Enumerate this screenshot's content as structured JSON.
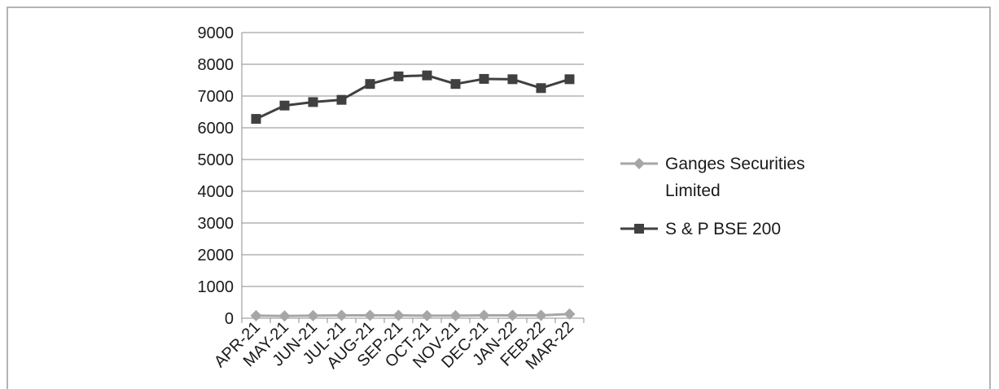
{
  "chart_data": {
    "type": "line",
    "categories": [
      "APR-21",
      "MAY-21",
      "JUN-21",
      "JUL-21",
      "AUG-21",
      "SEP-21",
      "OCT-21",
      "NOV-21",
      "DEC-21",
      "JAN-22",
      "FEB-22",
      "MAR-22"
    ],
    "series": [
      {
        "name": "Ganges Securities Limited",
        "name_lines": [
          "Ganges Securities",
          "Limited"
        ],
        "values": [
          80,
          70,
          80,
          90,
          90,
          90,
          80,
          80,
          90,
          90,
          90,
          130
        ],
        "color": "#a6a6a6",
        "marker": "diamond"
      },
      {
        "name": "S & P BSE 200",
        "name_lines": [
          "S & P BSE 200"
        ],
        "values": [
          6280,
          6700,
          6810,
          6880,
          7380,
          7620,
          7650,
          7380,
          7540,
          7530,
          7250,
          7530
        ],
        "color": "#404040",
        "marker": "square"
      }
    ],
    "yticks": [
      "0",
      "1000",
      "2000",
      "3000",
      "4000",
      "5000",
      "6000",
      "7000",
      "8000",
      "9000"
    ],
    "ylim": [
      0,
      9000
    ],
    "grid": true,
    "legend_position": "right",
    "title": "",
    "xlabel": "",
    "ylabel": ""
  }
}
